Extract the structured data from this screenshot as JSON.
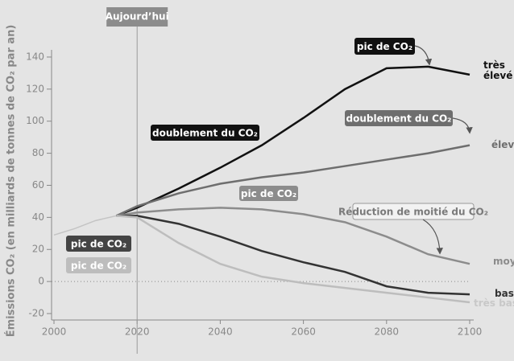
{
  "chart_data": {
    "type": "line",
    "ylabel": "Émissions CO₂  (en milliards de tonnes de CO₂ par an)",
    "xlim": [
      2000,
      2100
    ],
    "xticks": [
      2000,
      2020,
      2040,
      2060,
      2080,
      2100
    ],
    "ylim": [
      -22,
      148
    ],
    "yticks": [
      -20,
      0,
      20,
      40,
      60,
      80,
      100,
      120,
      140
    ],
    "today": {
      "label": "Aujourd’hui",
      "x": 2020
    },
    "series": [
      {
        "color": "#c4c4c4",
        "x": [
          2000,
          2005,
          2010,
          2015
        ],
        "values": [
          29,
          33,
          38,
          41
        ]
      },
      {
        "name": "très élevé",
        "color": "#111111",
        "x": [
          2015,
          2020,
          2030,
          2040,
          2050,
          2060,
          2070,
          2080,
          2090,
          2100
        ],
        "values": [
          41,
          46,
          58,
          71,
          85,
          102,
          120,
          133,
          134,
          129
        ]
      },
      {
        "name": "élevé",
        "color": "#6e6e6e",
        "x": [
          2015,
          2020,
          2030,
          2040,
          2050,
          2060,
          2070,
          2080,
          2090,
          2100
        ],
        "values": [
          41,
          47,
          55,
          61,
          65,
          68,
          72,
          76,
          80,
          85
        ]
      },
      {
        "name": "moyen",
        "color": "#8c8c8c",
        "x": [
          2015,
          2020,
          2030,
          2040,
          2050,
          2060,
          2070,
          2080,
          2090,
          2100
        ],
        "values": [
          41,
          43,
          45,
          46,
          45,
          42,
          37,
          28,
          17,
          11
        ]
      },
      {
        "name": "bas",
        "color": "#333333",
        "x": [
          2015,
          2020,
          2030,
          2040,
          2050,
          2060,
          2070,
          2080,
          2090,
          2100
        ],
        "values": [
          41,
          41,
          36,
          28,
          19,
          12,
          6,
          -3,
          -7,
          -8
        ]
      },
      {
        "name": "très bas",
        "color": "#bdbdbd",
        "x": [
          2015,
          2020,
          2030,
          2040,
          2050,
          2060,
          2070,
          2080,
          2090,
          2100
        ],
        "values": [
          41,
          40,
          24,
          11,
          3,
          -1,
          -4,
          -7,
          -10,
          -13
        ]
      }
    ],
    "annotations": [
      {
        "text": "pic de CO₂",
        "color": "#111111",
        "text_color": "#ffffff"
      },
      {
        "text": "doublement du CO₂",
        "color": "#111111",
        "text_color": "#ffffff"
      },
      {
        "text": "doublement du CO₂",
        "color": "#6e6e6e",
        "text_color": "#ffffff"
      },
      {
        "text": "pic de CO₂",
        "color": "#8c8c8c",
        "text_color": "#ffffff"
      },
      {
        "text": "Réduction de moitié du CO₂",
        "color": "#f2f2f2",
        "text_color": "#7a7a7a"
      },
      {
        "text": "pic de CO₂",
        "color": "#444444",
        "text_color": "#ffffff"
      },
      {
        "text": "pic de CO₂",
        "color": "#bdbdbd",
        "text_color": "#ffffff"
      }
    ]
  }
}
